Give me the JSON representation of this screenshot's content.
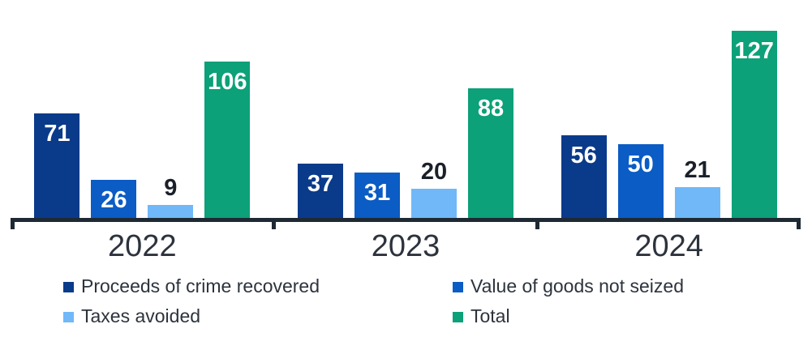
{
  "chart_data": {
    "type": "bar",
    "title": "",
    "categories": [
      "2022",
      "2023",
      "2024"
    ],
    "series": [
      {
        "name": "Proceeds of crime recovered",
        "color": "#0a3a8a",
        "values": [
          71,
          37,
          56
        ],
        "label_position": "inside"
      },
      {
        "name": "Value of goods not seized",
        "color": "#0b5cc4",
        "values": [
          26,
          31,
          50
        ],
        "label_position": "inside"
      },
      {
        "name": "Taxes avoided",
        "color": "#70b8f8",
        "values": [
          9,
          20,
          21
        ],
        "label_position": "above"
      },
      {
        "name": "Total",
        "color": "#0ca178",
        "values": [
          106,
          88,
          127
        ],
        "label_position": "inside"
      }
    ],
    "xlabel": "",
    "ylabel": "",
    "ylim": [
      0,
      148
    ],
    "gridlines": false,
    "y_axis_visible": false,
    "data_labels": true,
    "legend_position": "bottom",
    "legend_columns": 2
  },
  "colors": {
    "axis": "#1f2933",
    "category_label": "#2d333d",
    "value_label_dark": "#1a202a",
    "value_label_light": "#ffffff",
    "background": "#ffffff"
  }
}
